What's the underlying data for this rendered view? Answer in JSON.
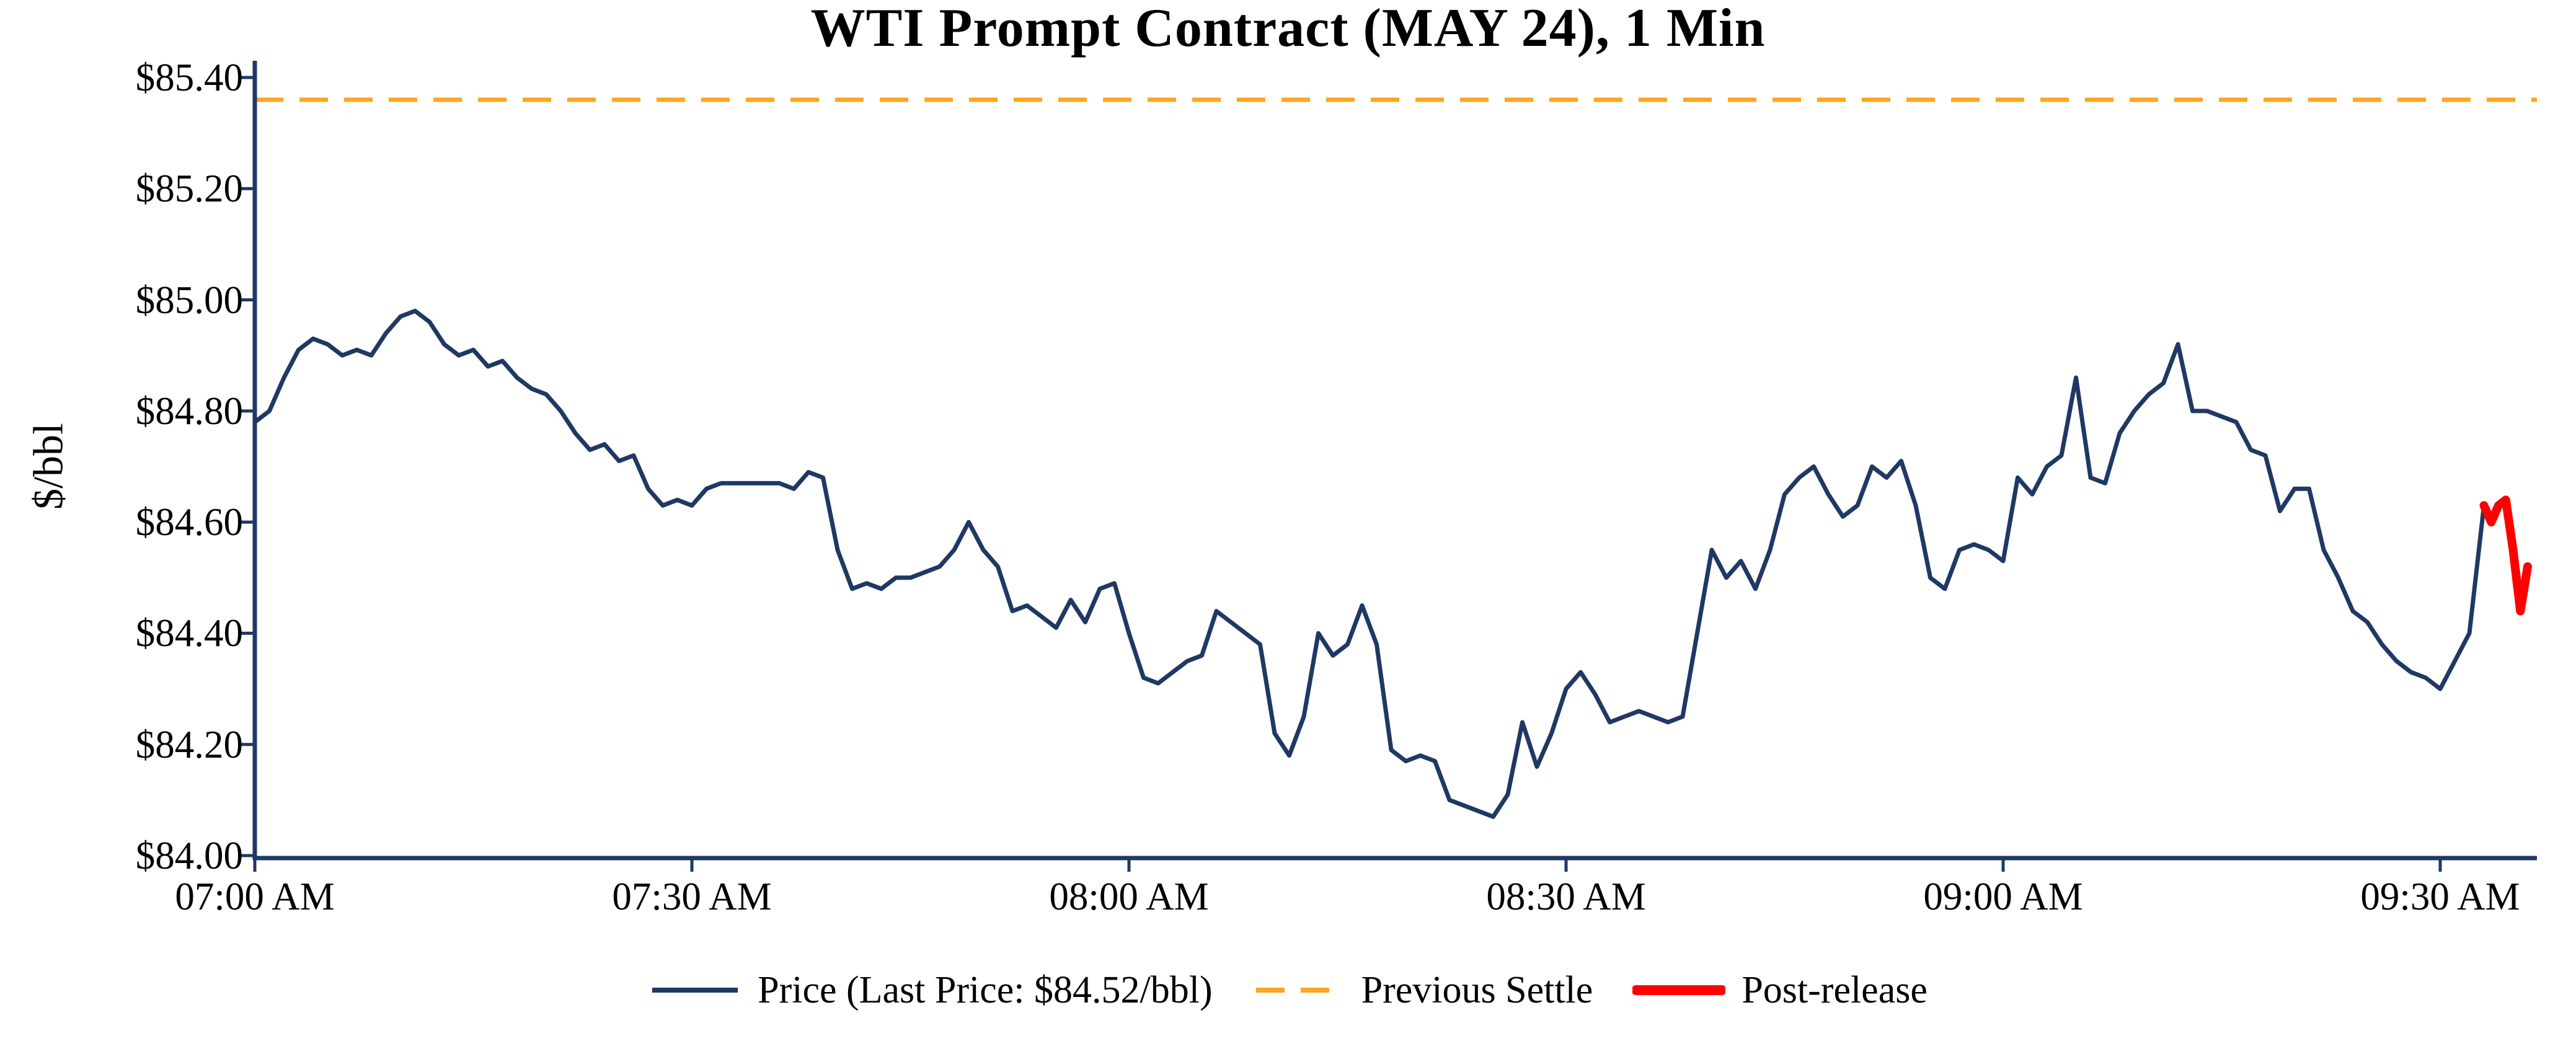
{
  "legend": {
    "price": "Price (Last Price: $84.52/bbl)",
    "settle": "Previous Settle",
    "post": "Post-release"
  },
  "colors": {
    "price": "#1f3864",
    "settle": "#ffa520",
    "post": "#ff0000",
    "axis": "#1f3864",
    "text": "#000000"
  },
  "chart_data": {
    "type": "line",
    "title": "WTI Prompt Contract (MAY 24), 1 Min",
    "xlabel": "",
    "ylabel": "$/bbl",
    "ylim": [
      84.0,
      85.4
    ],
    "xlim": [
      0,
      156
    ],
    "grid": false,
    "legend_position": "bottom-center",
    "previous_settle": 85.36,
    "last_price": 84.52,
    "y_ticks": [
      {
        "value": 85.4,
        "label": "$85.40"
      },
      {
        "value": 85.2,
        "label": "$85.20"
      },
      {
        "value": 85.0,
        "label": "$85.00"
      },
      {
        "value": 84.8,
        "label": "$84.80"
      },
      {
        "value": 84.6,
        "label": "$84.60"
      },
      {
        "value": 84.4,
        "label": "$84.40"
      },
      {
        "value": 84.2,
        "label": "$84.20"
      },
      {
        "value": 84.0,
        "label": "$84.00"
      }
    ],
    "x_ticks": [
      {
        "minute": 0,
        "label": "07:00 AM"
      },
      {
        "minute": 30,
        "label": "07:30 AM"
      },
      {
        "minute": 60,
        "label": "08:00 AM"
      },
      {
        "minute": 90,
        "label": "08:30 AM"
      },
      {
        "minute": 120,
        "label": "09:00 AM"
      },
      {
        "minute": 150,
        "label": "09:30 AM"
      }
    ],
    "series": [
      {
        "name": "Price",
        "color": "#1f3864",
        "style": "solid",
        "x_start_minute": 0,
        "x_step_minutes": 1,
        "values": [
          84.78,
          84.8,
          84.86,
          84.91,
          84.93,
          84.92,
          84.9,
          84.91,
          84.9,
          84.94,
          84.97,
          84.98,
          84.96,
          84.92,
          84.9,
          84.91,
          84.88,
          84.89,
          84.86,
          84.84,
          84.83,
          84.8,
          84.76,
          84.73,
          84.74,
          84.71,
          84.72,
          84.66,
          84.63,
          84.64,
          84.63,
          84.66,
          84.67,
          84.67,
          84.67,
          84.67,
          84.67,
          84.66,
          84.69,
          84.68,
          84.55,
          84.48,
          84.49,
          84.48,
          84.5,
          84.5,
          84.51,
          84.52,
          84.55,
          84.6,
          84.55,
          84.52,
          84.44,
          84.45,
          84.43,
          84.41,
          84.46,
          84.42,
          84.48,
          84.49,
          84.4,
          84.32,
          84.31,
          84.33,
          84.35,
          84.36,
          84.44,
          84.42,
          84.4,
          84.38,
          84.22,
          84.18,
          84.25,
          84.4,
          84.36,
          84.38,
          84.45,
          84.38,
          84.19,
          84.17,
          84.18,
          84.17,
          84.1,
          84.09,
          84.08,
          84.07,
          84.11,
          84.24,
          84.16,
          84.22,
          84.3,
          84.33,
          84.29,
          84.24,
          84.25,
          84.26,
          84.25,
          84.24,
          84.25,
          84.4,
          84.55,
          84.5,
          84.53,
          84.48,
          84.55,
          84.65,
          84.68,
          84.7,
          84.65,
          84.61,
          84.63,
          84.7,
          84.68,
          84.71,
          84.63,
          84.5,
          84.48,
          84.55,
          84.56,
          84.55,
          84.53,
          84.68,
          84.65,
          84.7,
          84.72,
          84.86,
          84.68,
          84.67,
          84.76,
          84.8,
          84.83,
          84.85,
          84.92,
          84.8,
          84.8,
          84.79,
          84.78,
          84.73,
          84.72,
          84.62,
          84.66,
          84.66,
          84.55,
          84.5,
          84.44,
          84.42,
          84.38,
          84.35,
          84.33,
          84.32,
          84.3,
          84.35,
          84.4,
          84.63
        ]
      },
      {
        "name": "Post-release",
        "color": "#ff0000",
        "style": "solid-thick",
        "x": [
          153,
          153.5,
          154,
          154.5,
          155,
          155.5,
          156
        ],
        "values": [
          84.63,
          84.6,
          84.63,
          84.64,
          84.55,
          84.44,
          84.52
        ]
      }
    ]
  }
}
